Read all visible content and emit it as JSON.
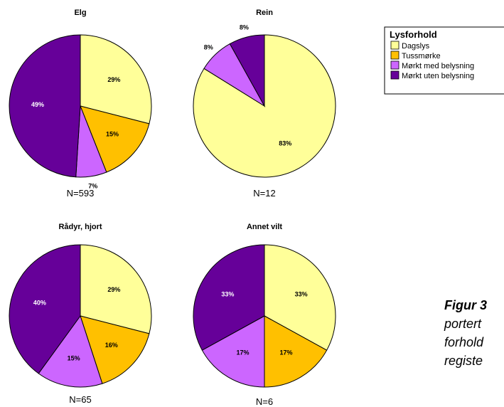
{
  "chart_data": [
    {
      "type": "pie",
      "title": "Elg",
      "n_label": "N=593",
      "categories": [
        "Dagslys",
        "Tussmørke",
        "Mørkt med belysning",
        "Mørkt uten belysning"
      ],
      "values": [
        29,
        15,
        7,
        49
      ],
      "labels": [
        "29%",
        "15%",
        "7%",
        "49%"
      ]
    },
    {
      "type": "pie",
      "title": "Rein",
      "n_label": "N=12",
      "categories": [
        "Dagslys",
        "Tussmørke",
        "Mørkt med belysning",
        "Mørkt uten belysning"
      ],
      "values": [
        83,
        0,
        8,
        8
      ],
      "labels": [
        "83%",
        "",
        "8%",
        "8%"
      ]
    },
    {
      "type": "pie",
      "title": "Rådyr, hjort",
      "n_label": "N=65",
      "categories": [
        "Dagslys",
        "Tussmørke",
        "Mørkt med belysning",
        "Mørkt uten belysning"
      ],
      "values": [
        29,
        16,
        15,
        40
      ],
      "labels": [
        "29%",
        "16%",
        "15%",
        "40%"
      ]
    },
    {
      "type": "pie",
      "title": "Annet vilt",
      "n_label": "N=6",
      "categories": [
        "Dagslys",
        "Tussmørke",
        "Mørkt med belysning",
        "Mørkt uten belysning"
      ],
      "values": [
        33,
        17,
        17,
        33
      ],
      "labels": [
        "33%",
        "17%",
        "17%",
        "33%"
      ]
    }
  ],
  "legend": {
    "title": "Lysforhold",
    "items": [
      "Dagslys",
      "Tussmørke",
      "Mørkt med belysning",
      "Mørkt uten belysning"
    ]
  },
  "colors": [
    "#ffff99",
    "#ffc000",
    "#cc66ff",
    "#660099"
  ],
  "caption": {
    "lines": [
      "Figur 3",
      "portert",
      "forhold",
      "registe"
    ]
  }
}
